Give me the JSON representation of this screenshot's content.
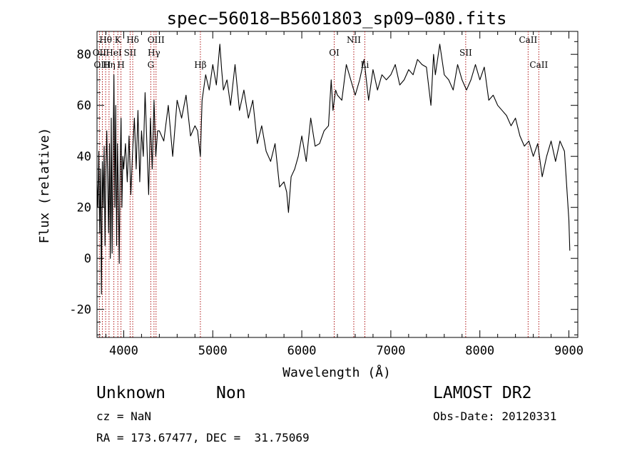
{
  "chart_data": {
    "type": "line",
    "title": "spec−56018−B5601803_sp09−080.fits",
    "xlabel": "Wavelength (Å)",
    "ylabel": "Flux (relative)",
    "xlim": [
      3700,
      9100
    ],
    "ylim": [
      -31,
      89
    ],
    "xticks": [
      4000,
      5000,
      6000,
      7000,
      8000,
      9000
    ],
    "yticks": [
      -20,
      0,
      20,
      40,
      60,
      80
    ],
    "grid": false,
    "line_color": "#000000",
    "marker_color": "#b01818",
    "series": [
      {
        "x": [
          3700,
          3710,
          3720,
          3730,
          3740,
          3750,
          3760,
          3770,
          3780,
          3790,
          3800,
          3810,
          3820,
          3830,
          3840,
          3850,
          3860,
          3870,
          3880,
          3890,
          3900,
          3910,
          3920,
          3930,
          3940,
          3950,
          3960,
          3970,
          3980,
          3990,
          4000,
          4020,
          4040,
          4060,
          4080,
          4100,
          4120,
          4140,
          4160,
          4180,
          4200,
          4220,
          4240,
          4260,
          4280,
          4300,
          4320,
          4340,
          4360,
          4380,
          4400,
          4450,
          4500,
          4550,
          4600,
          4650,
          4700,
          4750,
          4800,
          4830,
          4861,
          4880,
          4920,
          4960,
          5000,
          5040,
          5080,
          5100,
          5120,
          5160,
          5200,
          5250,
          5300,
          5350,
          5400,
          5450,
          5500,
          5550,
          5600,
          5650,
          5700,
          5750,
          5800,
          5830,
          5850,
          5880,
          5920,
          5960,
          6000,
          6050,
          6100,
          6150,
          6200,
          6250,
          6300,
          6330,
          6350,
          6380,
          6400,
          6450,
          6500,
          6550,
          6600,
          6650,
          6700,
          6750,
          6800,
          6850,
          6900,
          6950,
          7000,
          7050,
          7100,
          7150,
          7200,
          7250,
          7300,
          7350,
          7400,
          7450,
          7480,
          7500,
          7550,
          7600,
          7650,
          7700,
          7750,
          7800,
          7850,
          7900,
          7950,
          8000,
          8050,
          8100,
          8150,
          8200,
          8250,
          8300,
          8350,
          8400,
          8450,
          8500,
          8550,
          8600,
          8650,
          8700,
          8750,
          8800,
          8850,
          8900,
          8950,
          9000,
          9010
        ],
        "y": [
          30,
          20,
          42,
          10,
          35,
          -14,
          38,
          20,
          44,
          5,
          35,
          50,
          30,
          10,
          45,
          0,
          55,
          2,
          40,
          72,
          20,
          60,
          5,
          45,
          25,
          -2,
          38,
          55,
          20,
          40,
          35,
          45,
          30,
          48,
          25,
          42,
          55,
          35,
          58,
          30,
          50,
          40,
          65,
          45,
          25,
          55,
          35,
          62,
          40,
          50,
          50,
          46,
          60,
          40,
          62,
          55,
          64,
          48,
          52,
          50,
          40,
          62,
          72,
          66,
          76,
          68,
          84,
          74,
          66,
          70,
          60,
          76,
          58,
          66,
          55,
          62,
          45,
          52,
          42,
          38,
          45,
          28,
          30,
          26,
          18,
          32,
          35,
          40,
          48,
          38,
          55,
          44,
          45,
          50,
          52,
          70,
          58,
          66,
          64,
          62,
          76,
          70,
          64,
          70,
          78,
          62,
          74,
          66,
          72,
          70,
          72,
          76,
          68,
          70,
          74,
          72,
          78,
          76,
          75,
          60,
          80,
          72,
          84,
          72,
          70,
          66,
          76,
          70,
          66,
          70,
          76,
          70,
          75,
          62,
          64,
          60,
          58,
          56,
          52,
          55,
          48,
          44,
          46,
          40,
          45,
          32,
          40,
          46,
          38,
          46,
          42,
          15,
          3
        ]
      }
    ],
    "spectral_lines": [
      {
        "label": "Hθ",
        "x": 3797,
        "row": 0
      },
      {
        "label": "K",
        "x": 3934,
        "row": 0
      },
      {
        "label": "Hδ",
        "x": 4101,
        "row": 0
      },
      {
        "label": "OIII",
        "x": 4363,
        "row": 0
      },
      {
        "label": "NII",
        "x": 6584,
        "row": 0
      },
      {
        "label": "CaII",
        "x": 8542,
        "row": 0
      },
      {
        "label": "OII",
        "x": 3727,
        "row": 1
      },
      {
        "label": "HeI",
        "x": 3889,
        "row": 1
      },
      {
        "label": "SII",
        "x": 4072,
        "row": 1
      },
      {
        "label": "Hγ",
        "x": 4340,
        "row": 1
      },
      {
        "label": "OI",
        "x": 6364,
        "row": 1
      },
      {
        "label": "SII",
        "x": 7841,
        "row": 1
      },
      {
        "label": "OIII",
        "x": 3760,
        "row": 2
      },
      {
        "label": "Hη",
        "x": 3835,
        "row": 2
      },
      {
        "label": "H",
        "x": 3969,
        "row": 2
      },
      {
        "label": "G",
        "x": 4304,
        "row": 2
      },
      {
        "label": "Hβ",
        "x": 4861,
        "row": 2
      },
      {
        "label": "Li",
        "x": 6708,
        "row": 2
      },
      {
        "label": "CaII",
        "x": 8662,
        "row": 2
      }
    ]
  },
  "info": {
    "object_class": "Unknown",
    "subclass": "Non",
    "survey": "LAMOST DR2",
    "cz": "cz = NaN",
    "obs_date": "Obs-Date: 20120331",
    "coords": "RA = 173.67477, DEC =  31.75069"
  }
}
